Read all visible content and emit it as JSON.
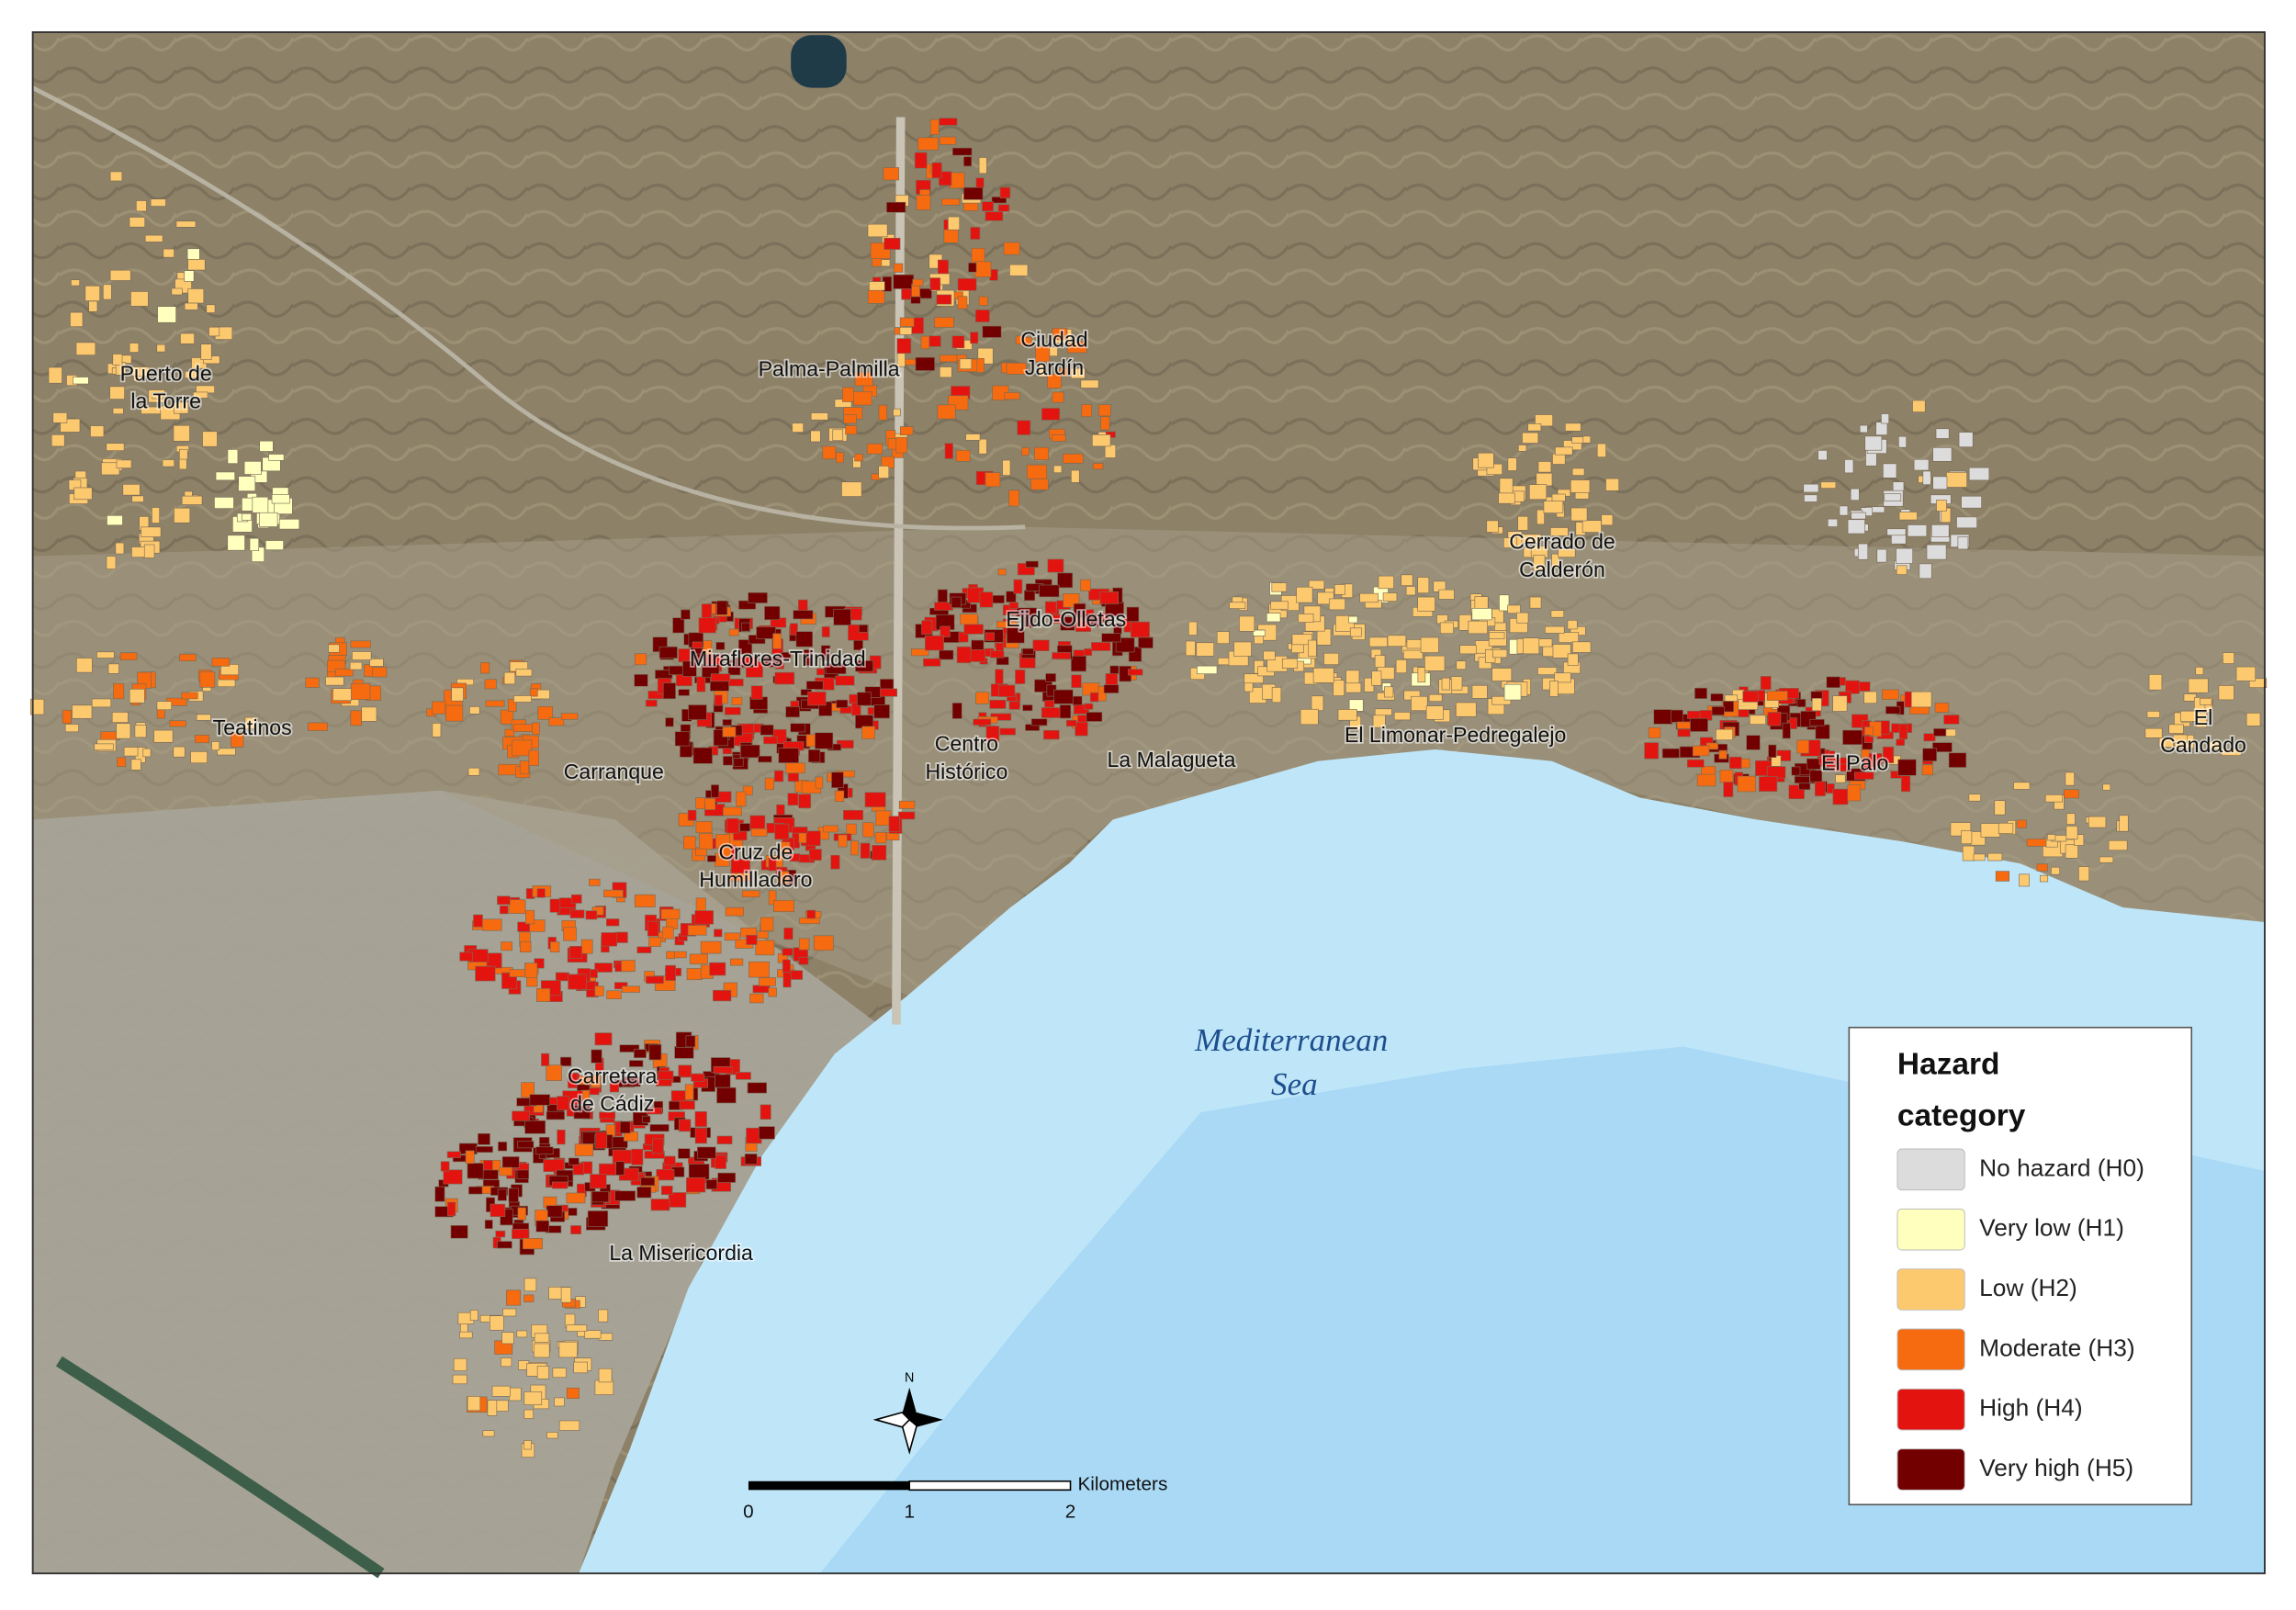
{
  "map": {
    "places": [
      {
        "lines": [
          "Puerto de",
          "la Torre"
        ]
      },
      {
        "lines": [
          "Palma-Palmilla"
        ]
      },
      {
        "lines": [
          "Ciudad",
          "Jardín"
        ]
      },
      {
        "lines": [
          "Cerrado de",
          "Calderón"
        ]
      },
      {
        "lines": [
          "Ejido-Olletas"
        ]
      },
      {
        "lines": [
          "Miraflores-Trinidad"
        ]
      },
      {
        "lines": [
          "Teatinos"
        ]
      },
      {
        "lines": [
          "Carranque"
        ]
      },
      {
        "lines": [
          "Centro",
          "Histórico"
        ]
      },
      {
        "lines": [
          "La Malagueta"
        ]
      },
      {
        "lines": [
          "El Limonar-Pedregalejo"
        ]
      },
      {
        "lines": [
          "El Palo"
        ]
      },
      {
        "lines": [
          "El",
          "Candado"
        ]
      },
      {
        "lines": [
          "Cruz de",
          "Humilladero"
        ]
      },
      {
        "lines": [
          "Carretera",
          "de Cádiz"
        ]
      },
      {
        "lines": [
          "La Misericordia"
        ]
      }
    ],
    "sea_label": {
      "lines": [
        "Mediterranean",
        "Sea"
      ]
    },
    "legend": {
      "title_lines": [
        "Hazard",
        "category"
      ],
      "items": [
        {
          "label": "No hazard (H0)",
          "color": "#dcdcdc"
        },
        {
          "label": "Very low (H1)",
          "color": "#ffffbe"
        },
        {
          "label": "Low (H2)",
          "color": "#fdc96f"
        },
        {
          "label": "Moderate (H3)",
          "color": "#f66a10"
        },
        {
          "label": "High (H4)",
          "color": "#e3140f"
        },
        {
          "label": "Very high (H5)",
          "color": "#730000"
        }
      ]
    },
    "scale_bar": {
      "ticks": [
        "0",
        "1",
        "2"
      ],
      "unit": "Kilometers"
    },
    "north": "N"
  }
}
